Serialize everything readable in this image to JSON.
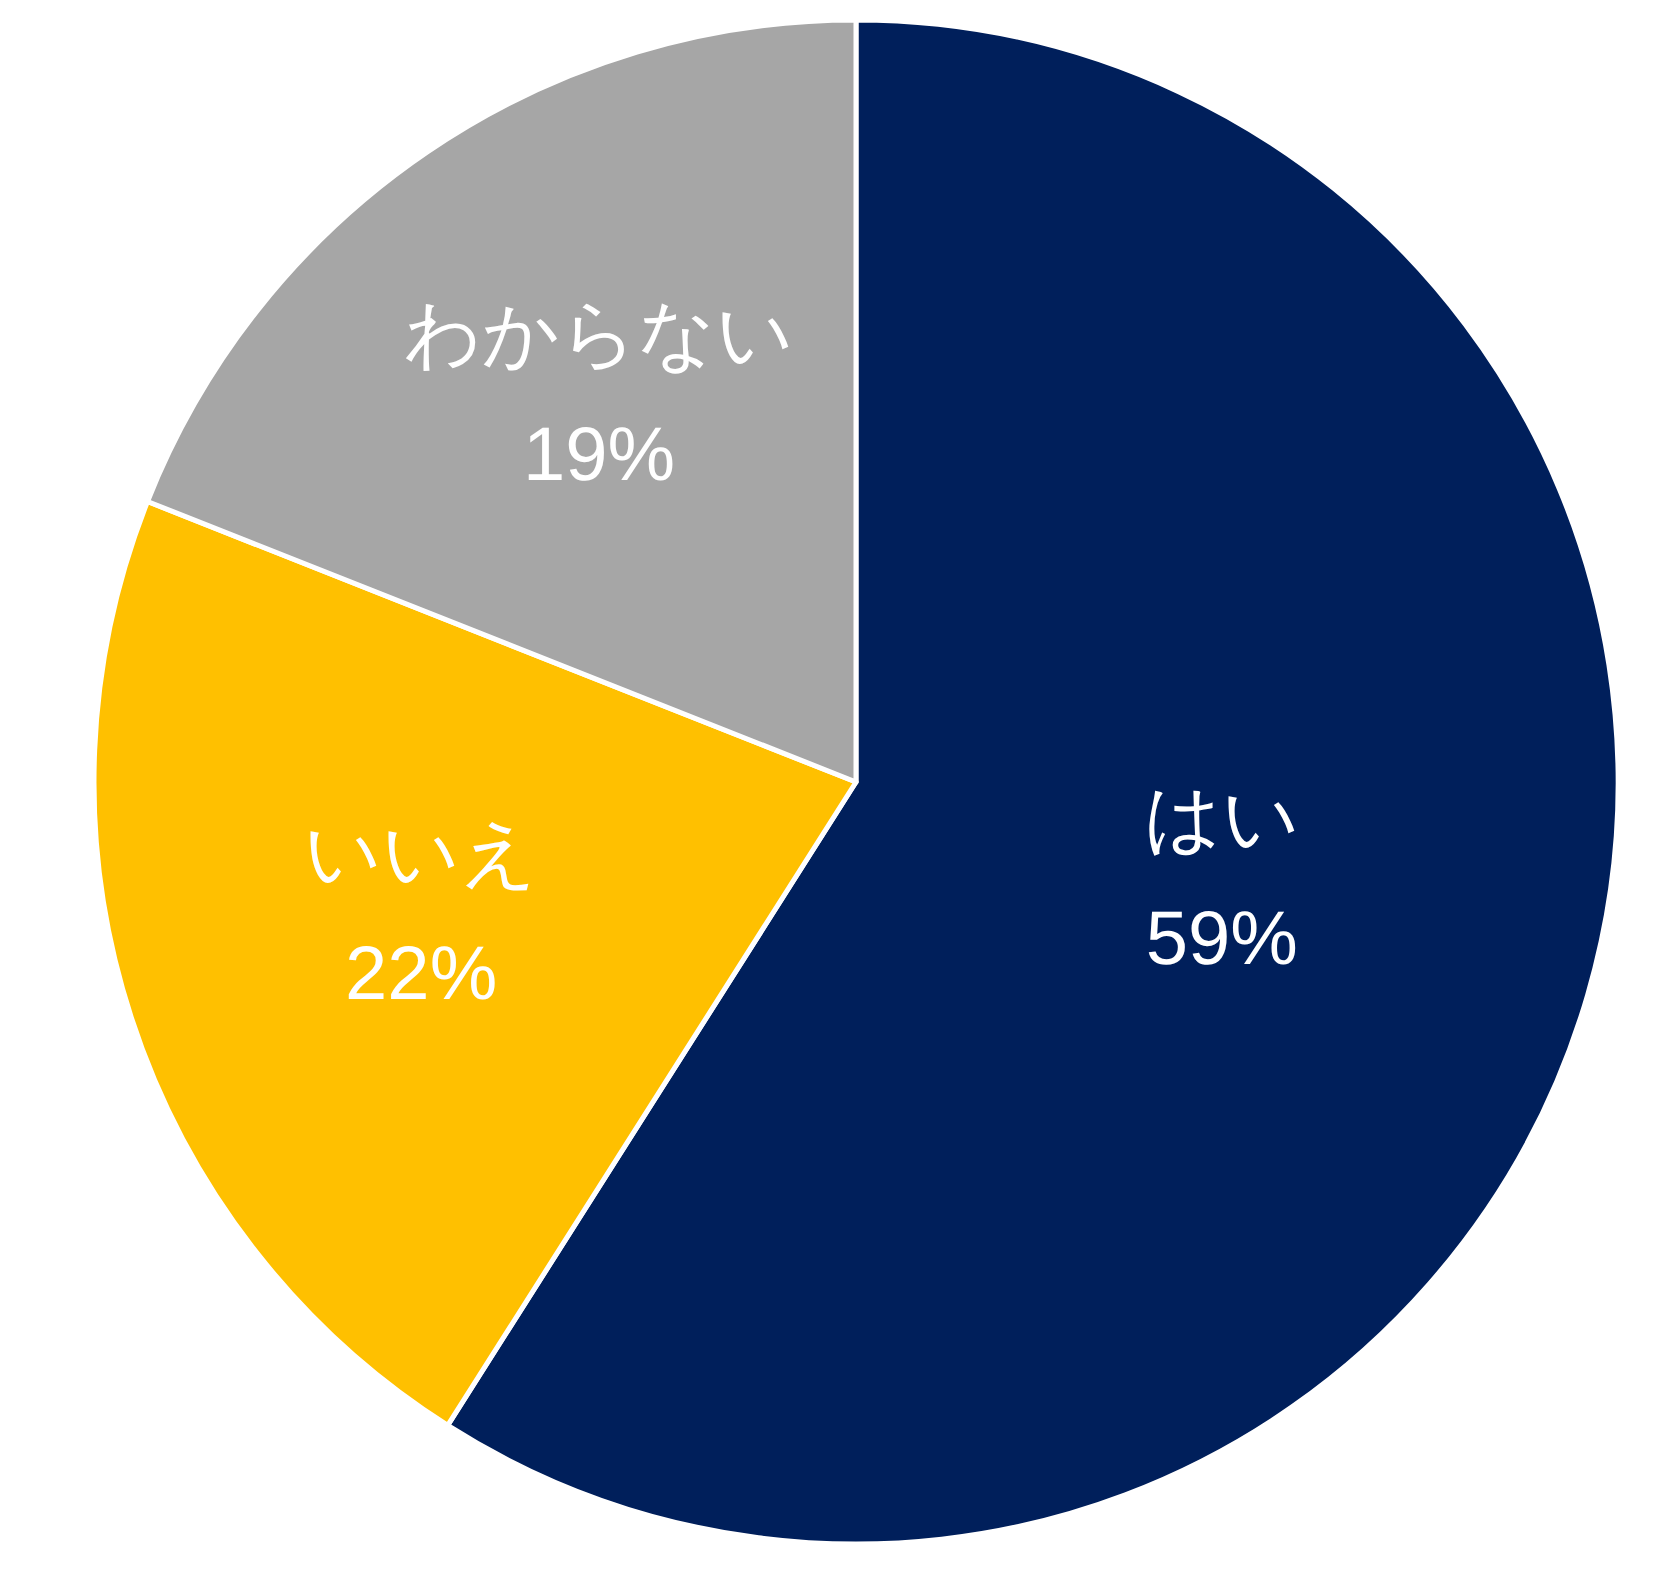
{
  "chart_data": {
    "type": "pie",
    "categories": [
      "はい",
      "いいえ",
      "わからない"
    ],
    "values": [
      59,
      22,
      19
    ],
    "colors": [
      "#001f5b",
      "#ffc000",
      "#a6a6a6"
    ],
    "value_labels": [
      "59%",
      "22%",
      "19%"
    ]
  }
}
